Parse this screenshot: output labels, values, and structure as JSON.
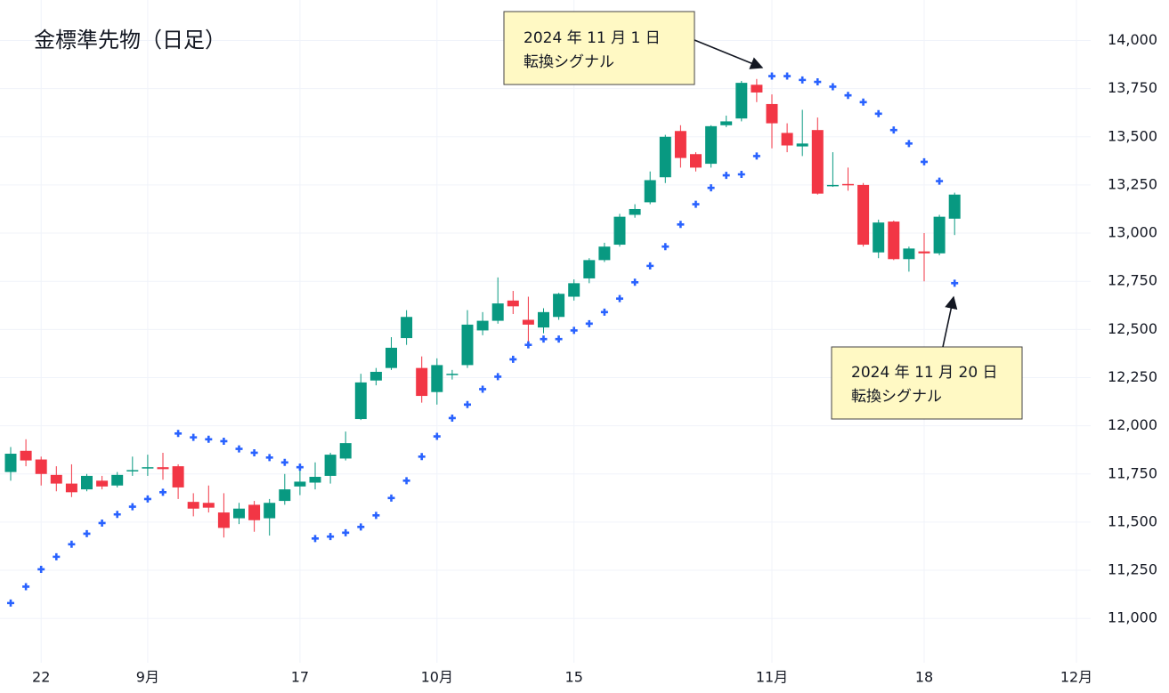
{
  "chart_data": {
    "type": "candlestick",
    "title": "金標準先物（日足）",
    "categories": [
      null,
      null,
      "22",
      null,
      null,
      null,
      null,
      null,
      null,
      "9月",
      null,
      null,
      null,
      null,
      null,
      null,
      null,
      null,
      null,
      "17",
      null,
      null,
      null,
      null,
      null,
      null,
      null,
      null,
      "10月",
      null,
      null,
      null,
      null,
      null,
      null,
      null,
      null,
      "15",
      null,
      null,
      null,
      null,
      null,
      null,
      null,
      null,
      null,
      null,
      null,
      null,
      "11月",
      null,
      null,
      null,
      null,
      null,
      null,
      null,
      null,
      null,
      "18",
      null,
      null,
      null,
      null,
      null,
      null,
      null,
      null,
      null,
      "12月"
    ],
    "open": [
      11760,
      11870,
      11825,
      11745,
      11700,
      11670,
      11715,
      11690,
      11765,
      11780,
      11785,
      11790,
      11605,
      11600,
      11550,
      11520,
      11590,
      11520,
      11610,
      11685,
      11705,
      11740,
      11830,
      12035,
      12235,
      12300,
      12455,
      12300,
      12175,
      12265,
      12315,
      12495,
      12545,
      12650,
      12550,
      12510,
      12565,
      12670,
      12765,
      12860,
      12940,
      13095,
      13160,
      13290,
      13530,
      13410,
      13360,
      13560,
      13595,
      13770,
      13670,
      13520,
      13450,
      13535,
      13245,
      13255,
      13250,
      12900,
      13060,
      12865,
      12905,
      12895,
      13075,
      null,
      null,
      null,
      null,
      null,
      null,
      null,
      null
    ],
    "high": [
      11890,
      11930,
      11840,
      11790,
      11800,
      11750,
      11740,
      11760,
      11840,
      11850,
      11860,
      11800,
      11650,
      11690,
      11650,
      11600,
      11610,
      11620,
      11750,
      11790,
      11810,
      11860,
      11970,
      12270,
      12300,
      12460,
      12600,
      12360,
      12350,
      12290,
      12600,
      12590,
      12770,
      12700,
      12670,
      12610,
      12690,
      12760,
      12870,
      12950,
      13100,
      13150,
      13320,
      13510,
      13560,
      13420,
      13560,
      13610,
      13790,
      13800,
      13720,
      13570,
      13640,
      13600,
      13420,
      13340,
      13260,
      13070,
      13065,
      12930,
      13000,
      13095,
      13210,
      null,
      null,
      null,
      null,
      null,
      null,
      null,
      null
    ],
    "low": [
      11715,
      11790,
      11690,
      11660,
      11630,
      11660,
      11670,
      11680,
      11740,
      11740,
      11720,
      11620,
      11530,
      11550,
      11420,
      11490,
      11450,
      11430,
      11590,
      11640,
      11670,
      11700,
      11820,
      12030,
      12210,
      12290,
      12420,
      12120,
      12110,
      12240,
      12300,
      12470,
      12530,
      12580,
      12420,
      12480,
      12550,
      12650,
      12740,
      12850,
      12930,
      13080,
      13150,
      13260,
      13340,
      13320,
      13340,
      13550,
      13580,
      13680,
      13440,
      13420,
      13400,
      13200,
      13240,
      13220,
      12930,
      12870,
      12860,
      12800,
      12750,
      12885,
      12990,
      null,
      null,
      null,
      null,
      null,
      null,
      null,
      null
    ],
    "close": [
      11855,
      11820,
      11750,
      11700,
      11655,
      11740,
      11685,
      11745,
      11770,
      11785,
      11775,
      11680,
      11570,
      11575,
      11470,
      11570,
      11510,
      11600,
      11670,
      11710,
      11735,
      11850,
      11910,
      12225,
      12280,
      12405,
      12565,
      12155,
      12315,
      12270,
      12525,
      12545,
      12635,
      12620,
      12525,
      12590,
      12685,
      12740,
      12860,
      12930,
      13085,
      13125,
      13275,
      13500,
      13390,
      13340,
      13555,
      13580,
      13780,
      13730,
      13570,
      13455,
      13465,
      13205,
      13250,
      13250,
      12940,
      13055,
      12865,
      12920,
      12895,
      13085,
      13200,
      null,
      null,
      null,
      null,
      null,
      null,
      null,
      null
    ],
    "up_color": "#089981",
    "down_color": "#f23645",
    "sar": {
      "color": "#2962ff",
      "values": [
        11080,
        11165,
        11255,
        11320,
        11385,
        11440,
        11495,
        11540,
        11580,
        11620,
        11655,
        11960,
        11940,
        11930,
        11920,
        11880,
        11860,
        11835,
        11810,
        11785,
        11415,
        11425,
        11445,
        11475,
        11535,
        11625,
        11715,
        11840,
        11945,
        12040,
        12110,
        12190,
        12255,
        12345,
        12420,
        12450,
        12450,
        12495,
        12530,
        12590,
        12660,
        12745,
        12830,
        12930,
        13045,
        13150,
        13235,
        13300,
        13305,
        13400,
        13815,
        13815,
        13795,
        13785,
        13760,
        13715,
        13680,
        13620,
        13535,
        13465,
        13370,
        13270,
        12740,
        null,
        null,
        null,
        null,
        null,
        null,
        null,
        null
      ]
    },
    "ylim": [
      10770,
      14210
    ],
    "yticks": [
      {
        "value": 11000,
        "label": "11,000"
      },
      {
        "value": 11250,
        "label": "11,250"
      },
      {
        "value": 11500,
        "label": "11,500"
      },
      {
        "value": 11750,
        "label": "11,750"
      },
      {
        "value": 12000,
        "label": "12,000"
      },
      {
        "value": 12250,
        "label": "12,250"
      },
      {
        "value": 12500,
        "label": "12,500"
      },
      {
        "value": 12750,
        "label": "12,750"
      },
      {
        "value": 13000,
        "label": "13,000"
      },
      {
        "value": 13250,
        "label": "13,250"
      },
      {
        "value": 13500,
        "label": "13,500"
      },
      {
        "value": 13750,
        "label": "13,750"
      },
      {
        "value": 14000,
        "label": "14,000"
      }
    ],
    "grid": true,
    "annotations": [
      {
        "lines": [
          "2024 年 11 月 1 日",
          "転換シグナル"
        ]
      },
      {
        "lines": [
          "2024 年 11 月 20 日",
          "転換シグナル"
        ]
      }
    ]
  }
}
